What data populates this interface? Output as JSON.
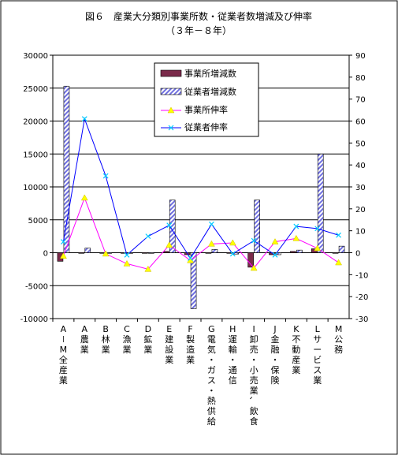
{
  "chart_data": {
    "type": "bar",
    "title": "図６　産業大分類別事業所数・従業者数増減及び伸率",
    "subtitle": "（３年－８年）",
    "categories": [
      "A－M全産業",
      "A農業",
      "B林業",
      "C漁業",
      "D鉱業",
      "E建設業",
      "F製造業",
      "G電気・ガス・熱供給",
      "H運輸・通信",
      "I卸売・小売業、飲食",
      "J金融・保険",
      "K不動産業",
      "Lサービス業",
      "M公務"
    ],
    "y_left": {
      "min": -10000,
      "max": 30000,
      "ticks": [
        "-10000",
        "-5000",
        "0",
        "5000",
        "10000",
        "15000",
        "20000",
        "25000",
        "30000"
      ]
    },
    "y_right": {
      "min": -30,
      "max": 90,
      "ticks": [
        "-30",
        "-20",
        "-10",
        "0",
        "10",
        "20",
        "30",
        "40",
        "50",
        "60",
        "70",
        "80",
        "90"
      ]
    },
    "grid": "horizontal",
    "legend_position": "top-center",
    "series": [
      {
        "name": "事業所増減数",
        "kind": "bar",
        "axis": "left",
        "color": "#7a2a4a",
        "values": [
          -1300,
          0,
          0,
          0,
          0,
          200,
          -300,
          0,
          0,
          -2200,
          -300,
          200,
          600,
          0
        ]
      },
      {
        "name": "従業者増減数",
        "kind": "bar",
        "axis": "left",
        "color": "#8080e0",
        "pattern": "hatched",
        "values": [
          25300,
          700,
          0,
          -100,
          0,
          8000,
          -8500,
          500,
          -200,
          8000,
          -300,
          400,
          15000,
          1000
        ]
      },
      {
        "name": "事業所伸率",
        "kind": "line",
        "axis": "right",
        "color": "#ff00ff",
        "marker": "#ffff00",
        "values": [
          -1.5,
          25,
          -0.5,
          -5,
          -7.5,
          3.5,
          -3.5,
          4,
          4.5,
          -7,
          5,
          6.5,
          2,
          -4.5
        ]
      },
      {
        "name": "従業者伸率",
        "kind": "line",
        "axis": "right",
        "color": "#0000ff",
        "marker": "#00ccff",
        "values": [
          5,
          61,
          35,
          -1,
          7.5,
          12.5,
          -2.5,
          13,
          -0.5,
          5.5,
          -1,
          12,
          11,
          8
        ]
      }
    ]
  }
}
